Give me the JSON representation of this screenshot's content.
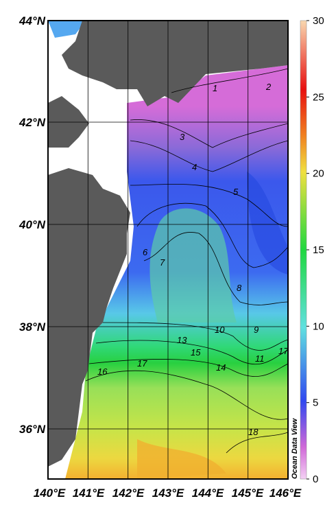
{
  "map": {
    "lat_labels": [
      "44°N",
      "42°N",
      "40°N",
      "38°N",
      "36°N"
    ],
    "lon_labels": [
      "140°E",
      "141°E",
      "142°E",
      "143°E",
      "144°E",
      "145°E",
      "146°E"
    ],
    "colorbar": {
      "range": [
        0,
        30
      ],
      "ticks": [
        0,
        5,
        10,
        15,
        20,
        25,
        30
      ]
    },
    "contour_labels": [
      "1",
      "2",
      "3",
      "4",
      "5",
      "6",
      "7",
      "8",
      "9",
      "10",
      "11",
      "13",
      "14",
      "15",
      "16",
      "17",
      "18",
      "17"
    ],
    "watermark": "Ocean Data View"
  }
}
